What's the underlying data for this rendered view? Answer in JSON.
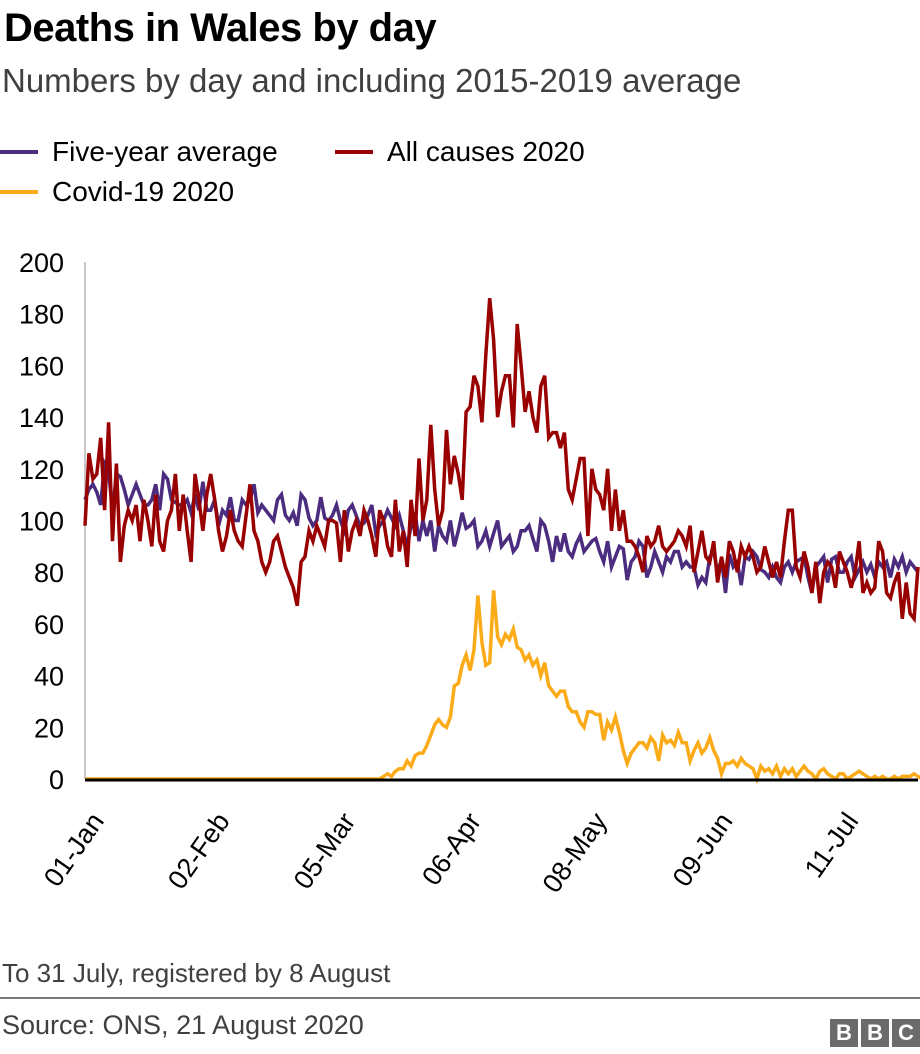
{
  "header": {
    "title": "Deaths in Wales by day",
    "subtitle": "Numbers by day and including 2015-2019 average"
  },
  "legend": [
    {
      "label": "Five-year average",
      "color": "#4b2c7f"
    },
    {
      "label": "All causes 2020",
      "color": "#990000"
    },
    {
      "label": "Covid-19 2020",
      "color": "#fbab18"
    }
  ],
  "footer": {
    "note": "To 31 July, registered by 8 August",
    "source": "Source: ONS, 21 August 2020",
    "logo": [
      "B",
      "B",
      "C"
    ]
  },
  "chart_data": {
    "type": "line",
    "title": "Deaths in Wales by day",
    "subtitle": "Numbers by day and including 2015-2019 average",
    "xlabel": "",
    "ylabel": "",
    "x_start": "2020-01-01",
    "x_end": "2020-07-31",
    "x_ticks": [
      {
        "day_index": 0,
        "label": "01-Jan"
      },
      {
        "day_index": 32,
        "label": "02-Feb"
      },
      {
        "day_index": 64,
        "label": "05-Mar"
      },
      {
        "day_index": 96,
        "label": "06-Apr"
      },
      {
        "day_index": 128,
        "label": "08-May"
      },
      {
        "day_index": 160,
        "label": "09-Jun"
      },
      {
        "day_index": 192,
        "label": "11-Jul"
      }
    ],
    "y_ticks": [
      0,
      20,
      40,
      60,
      80,
      100,
      120,
      140,
      160,
      180,
      200
    ],
    "ylim": [
      0,
      200
    ],
    "grid": false,
    "legend_position": "top-left",
    "series": [
      {
        "name": "Five-year average",
        "color": "#4b2c7f",
        "values": [
          108,
          112,
          114,
          111,
          106,
          122,
          119,
          104,
          118,
          117,
          112,
          106,
          110,
          114,
          110,
          106,
          106,
          108,
          114,
          104,
          118,
          116,
          108,
          107,
          106,
          106,
          108,
          103,
          110,
          104,
          115,
          104,
          104,
          108,
          98,
          104,
          102,
          109,
          100,
          100,
          108,
          106,
          108,
          114,
          103,
          106,
          104,
          102,
          100,
          108,
          110,
          102,
          100,
          103,
          98,
          110,
          108,
          101,
          98,
          100,
          109,
          101,
          100,
          102,
          106,
          100,
          96,
          104,
          106,
          102,
          98,
          99,
          102,
          106,
          95,
          98,
          100,
          104,
          101,
          98,
          102,
          96,
          90,
          98,
          103,
          92,
          100,
          94,
          100,
          88,
          98,
          94,
          92,
          100,
          90,
          96,
          103,
          97,
          98,
          100,
          90,
          92,
          96,
          90,
          95,
          100,
          90,
          92,
          94,
          88,
          90,
          96,
          96,
          98,
          93,
          88,
          100,
          98,
          92,
          84,
          94,
          88,
          95,
          88,
          86,
          91,
          94,
          88,
          90,
          92,
          93,
          88,
          84,
          92,
          82,
          86,
          90,
          89,
          77,
          84,
          86,
          92,
          90,
          78,
          82,
          88,
          84,
          80,
          86,
          84,
          88,
          88,
          82,
          84,
          82,
          82,
          75,
          78,
          76,
          86,
          88,
          80,
          85,
          72,
          87,
          82,
          84,
          75,
          86,
          85,
          88,
          86,
          81,
          80,
          78,
          82,
          78,
          76,
          82,
          84,
          80,
          84,
          85,
          86,
          78,
          72,
          82,
          84,
          86,
          76,
          85,
          86,
          80,
          80,
          84,
          86,
          78,
          81,
          84,
          80,
          83,
          78,
          84,
          82,
          84,
          78,
          85,
          82,
          86,
          80,
          84,
          82,
          80
        ],
        "note": "values approximate, read from plot"
      },
      {
        "name": "All causes 2020",
        "color": "#990000",
        "values": [
          98,
          126,
          116,
          118,
          132,
          104,
          138,
          92,
          122,
          84,
          98,
          104,
          100,
          106,
          92,
          108,
          100,
          90,
          110,
          92,
          88,
          100,
          104,
          118,
          96,
          110,
          96,
          84,
          118,
          108,
          96,
          110,
          118,
          108,
          96,
          88,
          94,
          104,
          96,
          92,
          90,
          102,
          114,
          96,
          92,
          84,
          80,
          84,
          92,
          94,
          88,
          82,
          78,
          74,
          67,
          84,
          86,
          96,
          92,
          98,
          94,
          90,
          100,
          100,
          99,
          84,
          104,
          88,
          96,
          100,
          94,
          104,
          100,
          94,
          86,
          104,
          100,
          90,
          86,
          108,
          88,
          96,
          82,
          108,
          94,
          124,
          100,
          108,
          137,
          112,
          98,
          104,
          135,
          114,
          125,
          118,
          108,
          142,
          144,
          156,
          152,
          138,
          164,
          186,
          170,
          140,
          150,
          156,
          156,
          136,
          176,
          160,
          142,
          150,
          140,
          134,
          152,
          156,
          132,
          134,
          134,
          128,
          134,
          112,
          108,
          116,
          124,
          124,
          94,
          120,
          112,
          110,
          104,
          120,
          96,
          112,
          96,
          104,
          92,
          92,
          90,
          86,
          80,
          94,
          90,
          92,
          98,
          90,
          88,
          90,
          92,
          96,
          94,
          90,
          98,
          80,
          88,
          96,
          86,
          84,
          92,
          76,
          86,
          78,
          92,
          88,
          80,
          90,
          86,
          90,
          86,
          80,
          82,
          90,
          84,
          78,
          84,
          78,
          92,
          104,
          104,
          82,
          78,
          88,
          82,
          72,
          84,
          68,
          80,
          84,
          82,
          74,
          88,
          84,
          80,
          74,
          80,
          92,
          72,
          76,
          72,
          74,
          92,
          88,
          72,
          70,
          76,
          80,
          62,
          76,
          64,
          62,
          82
        ],
        "note": "values approximate, read from plot"
      },
      {
        "name": "Covid-19 2020",
        "color": "#fbab18",
        "values": [
          0,
          0,
          0,
          0,
          0,
          0,
          0,
          0,
          0,
          0,
          0,
          0,
          0,
          0,
          0,
          0,
          0,
          0,
          0,
          0,
          0,
          0,
          0,
          0,
          0,
          0,
          0,
          0,
          0,
          0,
          0,
          0,
          0,
          0,
          0,
          0,
          0,
          0,
          0,
          0,
          0,
          0,
          0,
          0,
          0,
          0,
          0,
          0,
          0,
          0,
          0,
          0,
          0,
          0,
          0,
          0,
          0,
          0,
          0,
          0,
          0,
          0,
          0,
          0,
          0,
          0,
          0,
          0,
          0,
          0,
          0,
          0,
          0,
          0,
          0,
          0,
          1,
          2,
          1,
          3,
          4,
          4,
          7,
          5,
          9,
          10,
          10,
          13,
          17,
          21,
          23,
          21,
          20,
          24,
          36,
          37,
          44,
          48,
          42,
          50,
          71,
          53,
          44,
          45,
          73,
          55,
          52,
          56,
          54,
          58,
          51,
          50,
          46,
          48,
          44,
          46,
          40,
          45,
          36,
          34,
          32,
          34,
          34,
          28,
          26,
          26,
          22,
          20,
          26,
          26,
          25,
          25,
          15,
          22,
          19,
          24,
          18,
          11,
          6,
          10,
          12,
          14,
          14,
          12,
          16,
          14,
          7,
          17,
          14,
          15,
          13,
          18,
          14,
          14,
          7,
          11,
          14,
          10,
          12,
          16,
          11,
          8,
          2,
          6,
          6,
          7,
          5,
          8,
          6,
          5,
          4,
          0,
          5,
          3,
          4,
          2,
          5,
          1,
          4,
          2,
          4,
          1,
          3,
          5,
          3,
          2,
          0,
          3,
          4,
          2,
          1,
          0,
          2,
          2,
          0,
          1,
          2,
          3,
          2,
          1,
          0,
          1,
          0,
          1,
          0,
          0,
          1,
          0,
          1,
          1,
          1,
          2,
          1,
          0,
          1,
          2,
          2,
          1,
          2,
          1,
          2,
          2
        ],
        "note": "values approximate, read from plot"
      }
    ]
  }
}
